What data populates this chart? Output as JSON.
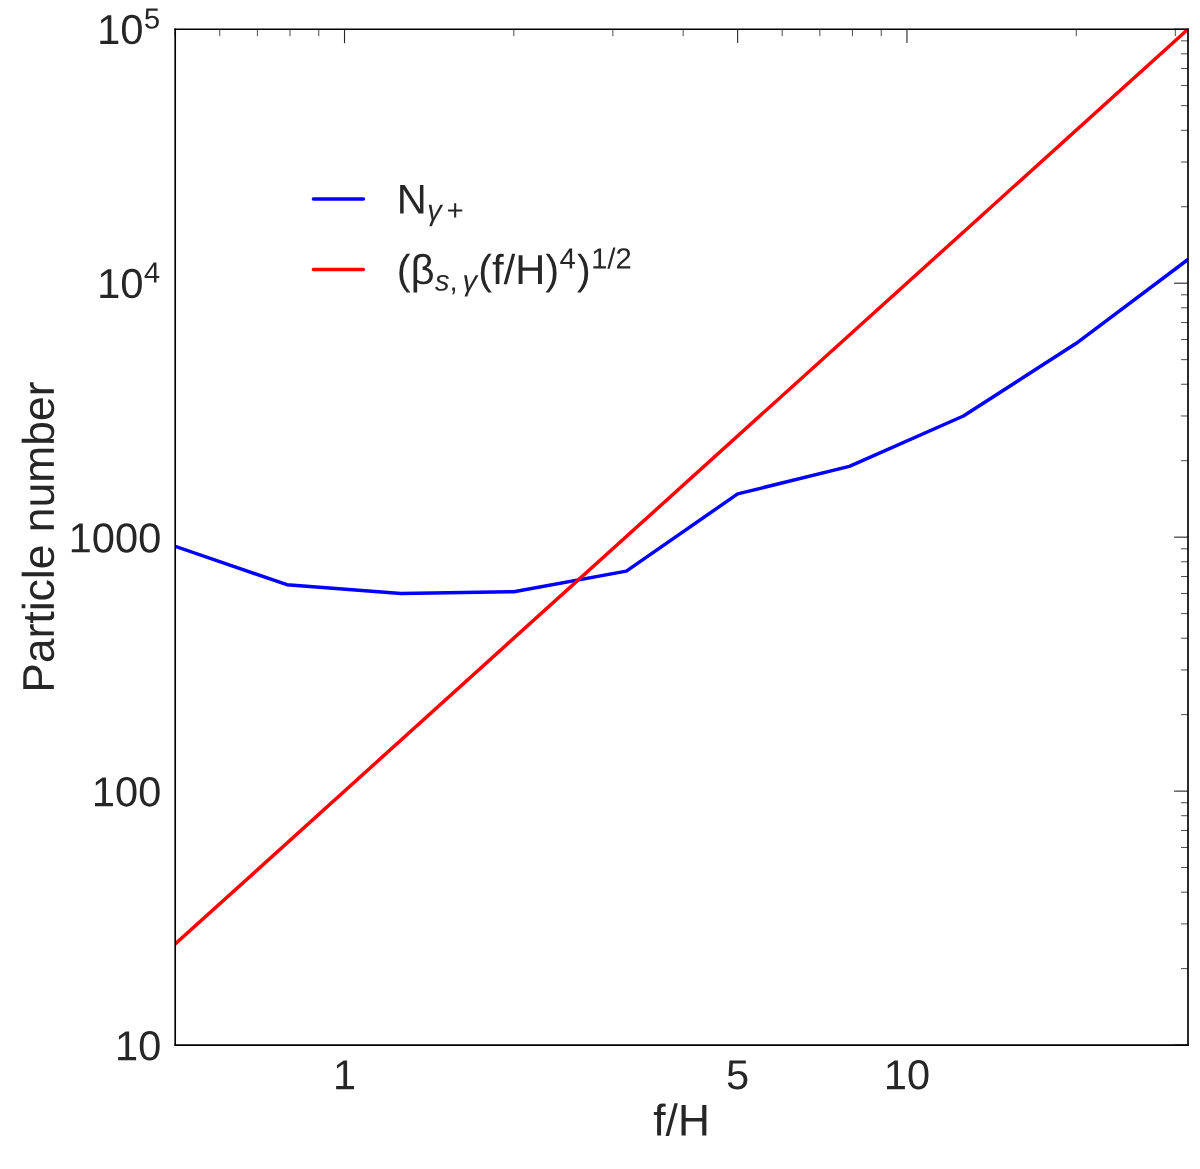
{
  "chart_data": {
    "type": "line",
    "xlabel": "f/H",
    "ylabel": "Particle number",
    "log": "xy",
    "xlim": [
      0.5,
      31.6
    ],
    "ylim": [
      10,
      100000
    ],
    "xticks": [
      1,
      5,
      10
    ],
    "yticks": [
      10,
      100,
      1000,
      {
        "value": 10000,
        "label": "10$^{4}$"
      },
      {
        "value": 100000,
        "label": "10$^{5}$"
      }
    ],
    "series": [
      {
        "name": "N$_{γ+}$",
        "color": "#0000ff",
        "x": [
          0.5,
          0.79,
          1.26,
          2.0,
          3.17,
          5.0,
          7.9,
          12.6,
          20,
          31.6
        ],
        "values": [
          920,
          650,
          600,
          610,
          735,
          1480,
          1900,
          3000,
          5800,
          12400
        ]
      },
      {
        "name": "(β$_{s,γ}$(f/H)$^{4}$)$^{1/2}$",
        "color": "#ff0000",
        "x": [
          0.5,
          31.6
        ],
        "values": [
          25,
          100000
        ]
      }
    ],
    "legend": "top left",
    "grid": false
  }
}
